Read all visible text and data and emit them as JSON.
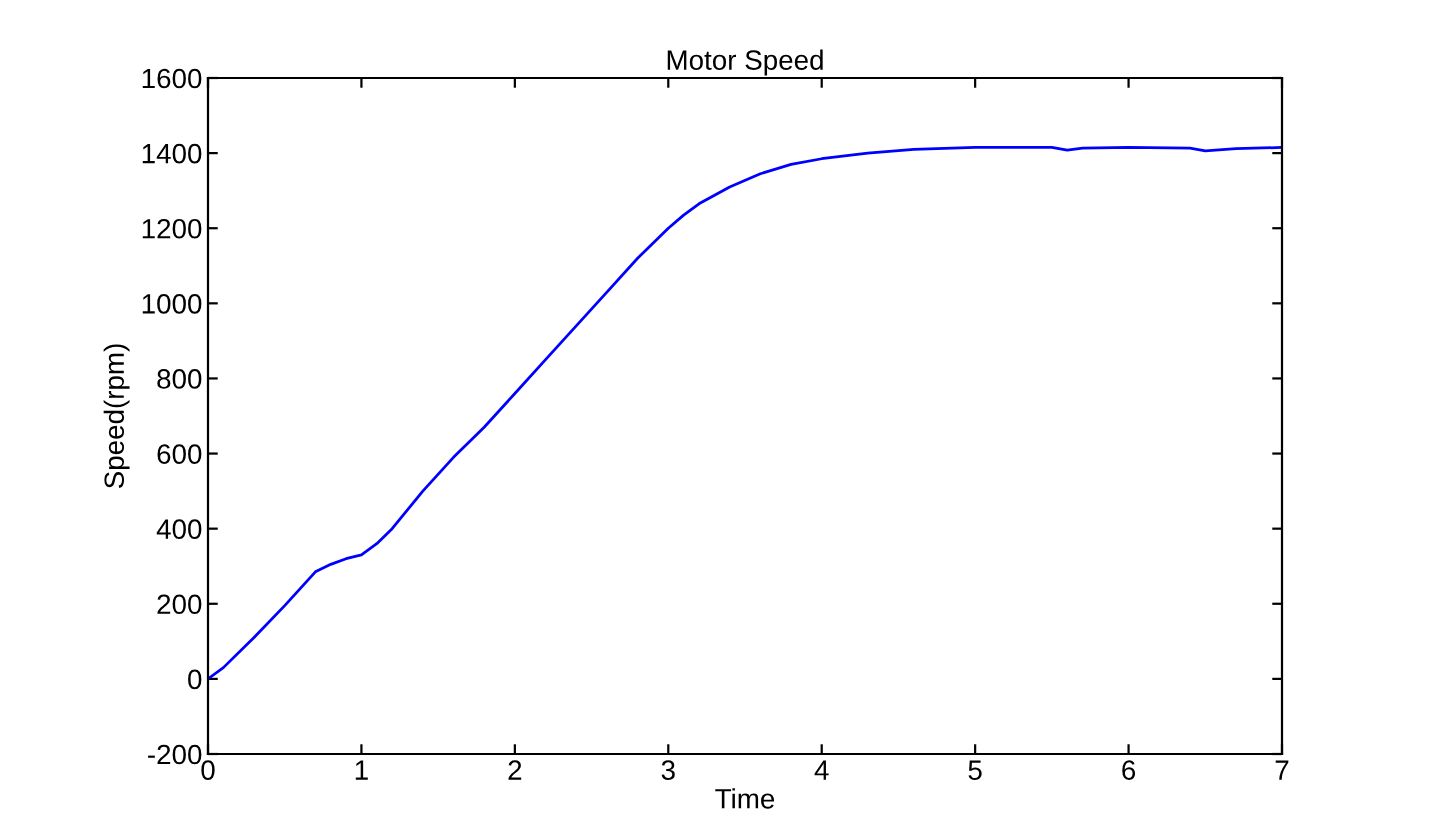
{
  "chart_data": {
    "type": "line",
    "title": "Motor Speed",
    "xlabel": "Time",
    "ylabel": "Speed(rpm)",
    "xlim": [
      0,
      7
    ],
    "ylim": [
      -200,
      1600
    ],
    "xticks": [
      0,
      1,
      2,
      3,
      4,
      5,
      6,
      7
    ],
    "yticks": [
      -200,
      0,
      200,
      400,
      600,
      800,
      1000,
      1200,
      1400,
      1600
    ],
    "grid": false,
    "series": [
      {
        "color": "#0000ff",
        "x": [
          0,
          0.1,
          0.3,
          0.5,
          0.7,
          0.8,
          0.9,
          1.0,
          1.1,
          1.2,
          1.4,
          1.6,
          1.8,
          2.0,
          2.2,
          2.4,
          2.6,
          2.8,
          3.0,
          3.1,
          3.2,
          3.4,
          3.6,
          3.8,
          4.0,
          4.3,
          4.6,
          5.0,
          5.5,
          5.6,
          5.7,
          6.0,
          6.4,
          6.5,
          6.7,
          7.0
        ],
        "values": [
          0,
          30,
          110,
          195,
          285,
          305,
          320,
          330,
          360,
          400,
          500,
          590,
          670,
          760,
          850,
          940,
          1030,
          1120,
          1200,
          1235,
          1265,
          1310,
          1345,
          1370,
          1385,
          1400,
          1410,
          1415,
          1415,
          1408,
          1413,
          1415,
          1413,
          1406,
          1412,
          1415
        ]
      }
    ]
  }
}
